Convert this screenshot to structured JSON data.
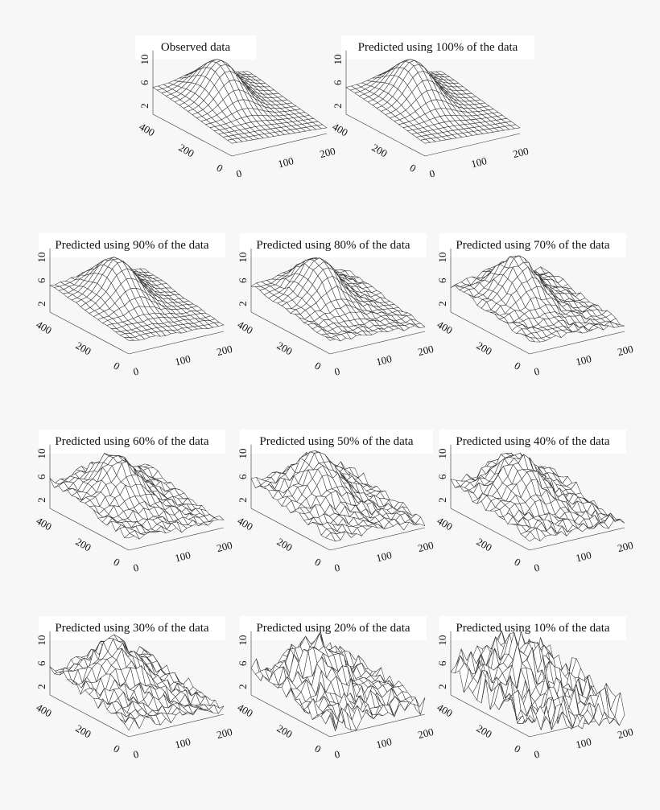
{
  "figure": {
    "background": "#f7f7f7",
    "title_box_color": "#ffffff",
    "line_color": "#333333"
  },
  "chart_data": [
    {
      "type": "surface",
      "title": "Observed data",
      "noise": 0.0,
      "x_ticks": [
        "400",
        "200",
        "0"
      ],
      "y_ticks": [
        "0",
        "100",
        "200"
      ],
      "z_ticks": [
        "2",
        "6",
        "10"
      ],
      "zlim": [
        0,
        12
      ]
    },
    {
      "type": "surface",
      "title": "Predicted using 100% of the data",
      "noise": 0.0,
      "x_ticks": [
        "400",
        "200",
        "0"
      ],
      "y_ticks": [
        "0",
        "100",
        "200"
      ],
      "z_ticks": [
        "2",
        "6",
        "10"
      ],
      "zlim": [
        0,
        12
      ]
    },
    {
      "type": "surface",
      "title": "Predicted using 90% of the data",
      "noise": 0.1,
      "x_ticks": [
        "400",
        "200",
        "0"
      ],
      "y_ticks": [
        "0",
        "100",
        "200"
      ],
      "z_ticks": [
        "2",
        "6",
        "10"
      ],
      "zlim": [
        0,
        12
      ]
    },
    {
      "type": "surface",
      "title": "Predicted using 80% of the data",
      "noise": 0.2,
      "x_ticks": [
        "400",
        "200",
        "0"
      ],
      "y_ticks": [
        "0",
        "100",
        "200"
      ],
      "z_ticks": [
        "2",
        "6",
        "10"
      ],
      "zlim": [
        0,
        12
      ]
    },
    {
      "type": "surface",
      "title": "Predicted using 70% of the data",
      "noise": 0.3,
      "x_ticks": [
        "400",
        "200",
        "0"
      ],
      "y_ticks": [
        "0",
        "100",
        "200"
      ],
      "z_ticks": [
        "2",
        "6",
        "10"
      ],
      "zlim": [
        0,
        12
      ]
    },
    {
      "type": "surface",
      "title": "Predicted using 60% of the data",
      "noise": 0.4,
      "x_ticks": [
        "400",
        "200",
        "0"
      ],
      "y_ticks": [
        "0",
        "100",
        "200"
      ],
      "z_ticks": [
        "2",
        "6",
        "10"
      ],
      "zlim": [
        0,
        12
      ]
    },
    {
      "type": "surface",
      "title": "Predicted using 50% of the data",
      "noise": 0.5,
      "x_ticks": [
        "400",
        "200",
        "0"
      ],
      "y_ticks": [
        "0",
        "100",
        "200"
      ],
      "z_ticks": [
        "2",
        "6",
        "10"
      ],
      "zlim": [
        0,
        12
      ]
    },
    {
      "type": "surface",
      "title": "Predicted using 40% of the data",
      "noise": 0.6,
      "x_ticks": [
        "400",
        "200",
        "0"
      ],
      "y_ticks": [
        "0",
        "100",
        "200"
      ],
      "z_ticks": [
        "2",
        "6",
        "10"
      ],
      "zlim": [
        0,
        12
      ]
    },
    {
      "type": "surface",
      "title": "Predicted using 30% of the data",
      "noise": 0.7,
      "x_ticks": [
        "400",
        "200",
        "0"
      ],
      "y_ticks": [
        "0",
        "100",
        "200"
      ],
      "z_ticks": [
        "2",
        "6",
        "10"
      ],
      "zlim": [
        0,
        12
      ]
    },
    {
      "type": "surface",
      "title": "Predicted using 20% of the data",
      "noise": 1.2,
      "x_ticks": [
        "400",
        "200",
        "0"
      ],
      "y_ticks": [
        "0",
        "100",
        "200"
      ],
      "z_ticks": [
        "2",
        "6",
        "10"
      ],
      "zlim": [
        0,
        12
      ]
    },
    {
      "type": "surface",
      "title": "Predicted using 10% of the data",
      "noise": 1.8,
      "x_ticks": [
        "400",
        "200",
        "0"
      ],
      "y_ticks": [
        "0",
        "100",
        "200"
      ],
      "z_ticks": [
        "2",
        "6",
        "10"
      ],
      "zlim": [
        0,
        12
      ]
    }
  ]
}
